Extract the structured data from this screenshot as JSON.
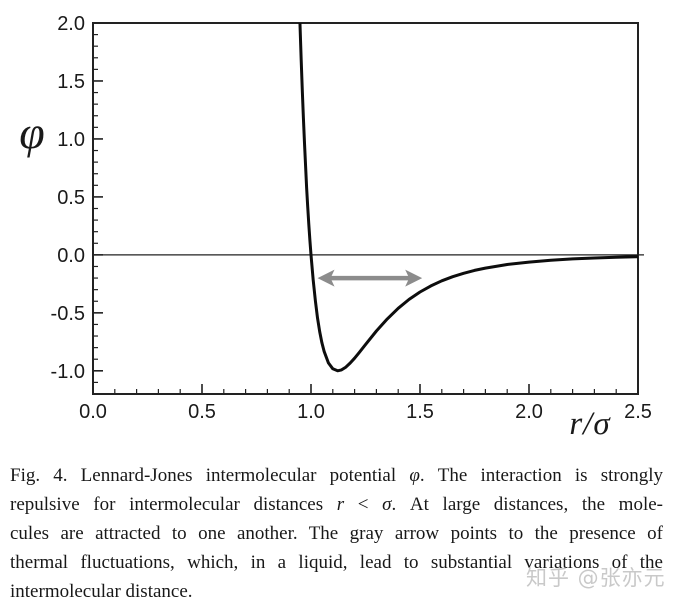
{
  "figure": {
    "caption": {
      "lines": [
        [
          {
            "t": "Fig. 4.  Lennard-Jones intermolecular potential ",
            "i": 0
          },
          {
            "t": "φ",
            "i": 1
          },
          {
            "t": ". The interaction is strongly",
            "i": 0
          }
        ],
        [
          {
            "t": "repulsive for intermolecular distances ",
            "i": 0
          },
          {
            "t": "r",
            "i": 1
          },
          {
            "t": " < ",
            "i": 0
          },
          {
            "t": "σ",
            "i": 1
          },
          {
            "t": ". At large distances, the mole-",
            "i": 0
          }
        ],
        [
          {
            "t": "cules are attracted to one another. The gray arrow points to the presence of",
            "i": 0
          }
        ],
        [
          {
            "t": "thermal fluctuations, which, in a liquid, lead to substantial variations of the",
            "i": 0
          }
        ],
        [
          {
            "t": "intermolecular distance.",
            "i": 0
          }
        ]
      ]
    },
    "watermark": "知乎 @张亦元"
  },
  "chart_data": {
    "type": "line",
    "title": "",
    "xlabel": "r/σ",
    "ylabel": "φ",
    "xlim": [
      0,
      2.5
    ],
    "ylim": [
      -1.2,
      2.0
    ],
    "grid": false,
    "legend": "none",
    "x_major_ticks": [
      0.0,
      0.5,
      1.0,
      1.5,
      2.0,
      2.5
    ],
    "x_tick_labels": [
      "0.0",
      "0.5",
      "1.0",
      "1.5",
      "2.0",
      "2.5"
    ],
    "y_major_ticks": [
      -1.0,
      -0.5,
      0.0,
      0.5,
      1.0,
      1.5,
      2.0
    ],
    "y_tick_labels": [
      "-1.0",
      "-0.5",
      "0.0",
      "0.5",
      "1.0",
      "1.5",
      "2.0"
    ],
    "minor_tick_step": 0.1,
    "zero_line_y": 0.0,
    "series": [
      {
        "name": "Lennard-Jones potential φ = 4((r/σ)^-12 − (r/σ)^-6)",
        "x": [
          0.945,
          0.95,
          0.955,
          0.96,
          0.965,
          0.97,
          0.975,
          0.98,
          0.985,
          0.99,
          0.995,
          1.0,
          1.01,
          1.02,
          1.03,
          1.04,
          1.05,
          1.06,
          1.08,
          1.1,
          1.122,
          1.14,
          1.16,
          1.18,
          1.2,
          1.22,
          1.25,
          1.3,
          1.35,
          1.4,
          1.45,
          1.5,
          1.55,
          1.6,
          1.65,
          1.7,
          1.75,
          1.8,
          1.9,
          2.0,
          2.1,
          2.2,
          2.3,
          2.4,
          2.5
        ],
        "y": [
          2.27,
          1.961,
          1.678,
          1.418,
          1.181,
          0.963,
          0.764,
          0.582,
          0.416,
          0.264,
          0.126,
          0.0,
          -0.218,
          -0.398,
          -0.544,
          -0.663,
          -0.758,
          -0.832,
          -0.932,
          -0.983,
          -1.0,
          -0.992,
          -0.968,
          -0.933,
          -0.891,
          -0.845,
          -0.774,
          -0.657,
          -0.552,
          -0.461,
          -0.384,
          -0.32,
          -0.268,
          -0.224,
          -0.188,
          -0.159,
          -0.134,
          -0.114,
          -0.083,
          -0.062,
          -0.046,
          -0.035,
          -0.027,
          -0.021,
          -0.016
        ]
      }
    ],
    "annotation_arrow": {
      "style": "double-headed",
      "x1": 1.03,
      "x2": 1.51,
      "y": -0.2
    },
    "colors": {
      "curve": "#0d0d0d",
      "axis": "#222222",
      "arrow": "#8c8c8c",
      "tick_label": "#1a1a1a",
      "watermark": "#c9c9c9"
    }
  }
}
